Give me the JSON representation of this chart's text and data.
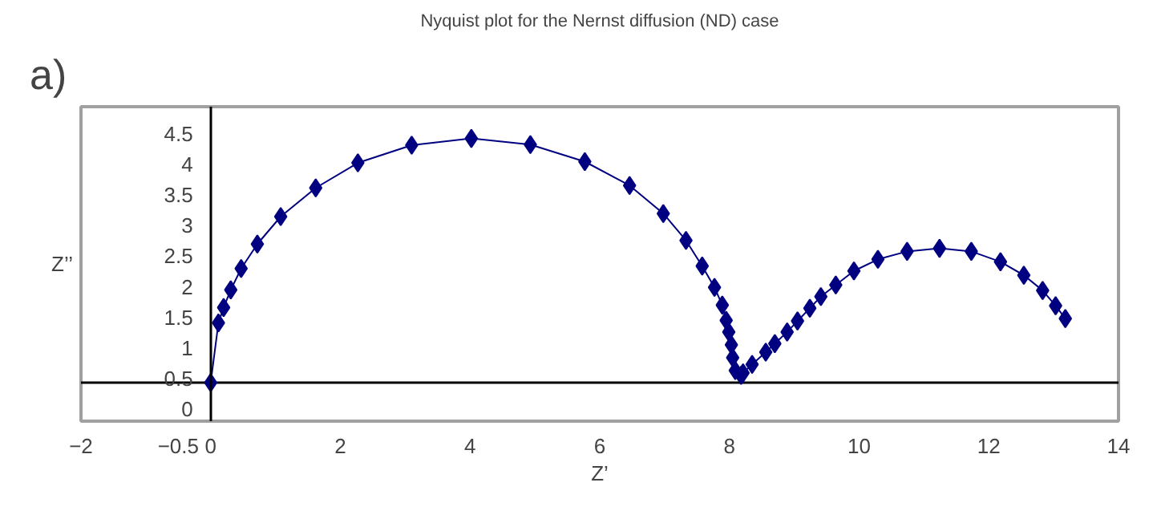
{
  "chart_data": {
    "type": "line",
    "title": "Nyquist plot for the Nernst diffusion (ND) case",
    "xlabel": "Z’",
    "ylabel": "Z’’",
    "annotations": [
      "a)"
    ],
    "x": [
      0,
      0.12,
      0.2,
      0.31,
      0.47,
      0.72,
      1.08,
      1.62,
      2.27,
      3.1,
      4.02,
      4.93,
      5.77,
      6.46,
      6.98,
      7.33,
      7.58,
      7.77,
      7.89,
      7.95,
      7.99,
      8.03,
      8.05,
      8.09,
      8.18,
      8.21,
      8.35,
      8.56,
      8.7,
      8.89,
      9.05,
      9.24,
      9.41,
      9.64,
      9.92,
      10.29,
      10.74,
      11.24,
      11.73,
      12.18,
      12.54,
      12.83,
      13.03,
      13.18
    ],
    "series": [
      {
        "color": "#000080",
        "values": [
          0.43,
          1.41,
          1.66,
          1.95,
          2.3,
          2.7,
          3.15,
          3.62,
          4.03,
          4.32,
          4.43,
          4.33,
          4.05,
          3.66,
          3.2,
          2.76,
          2.34,
          1.99,
          1.7,
          1.45,
          1.26,
          1.05,
          0.84,
          0.63,
          0.55,
          0.59,
          0.73,
          0.93,
          1.07,
          1.26,
          1.44,
          1.65,
          1.84,
          2.03,
          2.26,
          2.45,
          2.58,
          2.63,
          2.58,
          2.41,
          2.19,
          1.94,
          1.69,
          1.48
        ]
      }
    ],
    "marker": "diamond",
    "grid": false,
    "ref_lines": [
      {
        "axis": "y",
        "value": 0.43,
        "color": "#000000"
      }
    ],
    "xlim": [
      -2,
      14
    ],
    "xticks": [
      -2,
      -0.5,
      0,
      2,
      4,
      6,
      8,
      10,
      12,
      14
    ],
    "ylim": [
      -0.2,
      4.95
    ],
    "yticks": [
      0,
      0.5,
      1,
      1.5,
      2,
      2.5,
      3,
      3.5,
      4,
      4.5
    ]
  }
}
